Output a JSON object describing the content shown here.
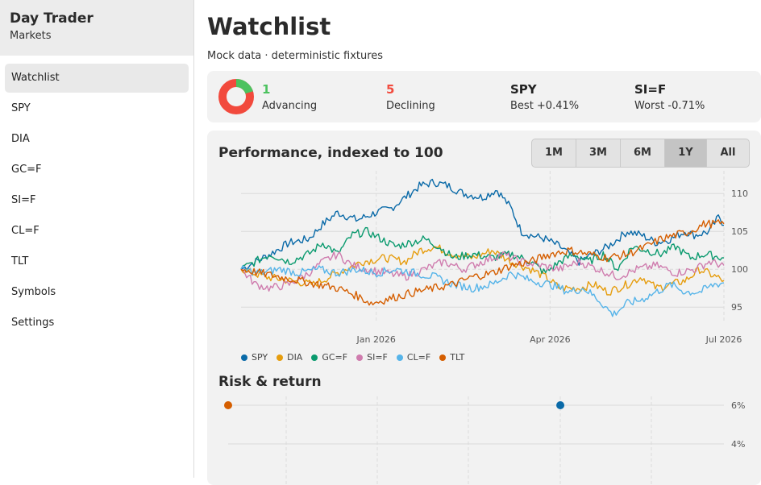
{
  "app": {
    "title": "Day Trader",
    "subtitle": "Markets"
  },
  "sidebar": {
    "items": [
      {
        "label": "Watchlist",
        "active": true
      },
      {
        "label": "SPY"
      },
      {
        "label": "DIA"
      },
      {
        "label": "GC=F"
      },
      {
        "label": "SI=F"
      },
      {
        "label": "CL=F"
      },
      {
        "label": "TLT"
      },
      {
        "label": "Symbols"
      },
      {
        "label": "Settings"
      }
    ]
  },
  "page": {
    "title": "Watchlist",
    "subtitle": "Mock data · deterministic fixtures"
  },
  "summary": {
    "advancing": {
      "count": "1",
      "label": "Advancing",
      "color": "#4cc25f"
    },
    "declining": {
      "count": "5",
      "label": "Declining",
      "color": "#f24a3d"
    },
    "best": {
      "symbol": "SPY",
      "label": "Best +0.41%"
    },
    "worst": {
      "symbol": "SI=F",
      "label": "Worst -0.71%"
    }
  },
  "performance": {
    "title": "Performance, indexed to 100",
    "ranges": [
      "1M",
      "3M",
      "6M",
      "1Y",
      "All"
    ],
    "active_range": "1Y"
  },
  "risk": {
    "title": "Risk & return"
  },
  "chart_data": [
    {
      "type": "line",
      "title": "Performance, indexed to 100",
      "ylim": [
        93,
        113
      ],
      "y_ticks": [
        "110",
        "105",
        "100",
        "95"
      ],
      "x_tick_labels": [
        "Jan 2026",
        "Apr 2026",
        "Jul 2026"
      ],
      "x_tick_pos": [
        0.28,
        0.64,
        1.0
      ],
      "legend": "bottom-left",
      "series": [
        {
          "name": "SPY",
          "color": "#0a6aa8",
          "anchors": [
            [
              0,
              100
            ],
            [
              0.03,
              101
            ],
            [
              0.06,
              102
            ],
            [
              0.1,
              103.5
            ],
            [
              0.14,
              104
            ],
            [
              0.17,
              106
            ],
            [
              0.2,
              107.5
            ],
            [
              0.24,
              106.5
            ],
            [
              0.28,
              107.5
            ],
            [
              0.31,
              108
            ],
            [
              0.34,
              109.5
            ],
            [
              0.37,
              111
            ],
            [
              0.4,
              111.5
            ],
            [
              0.43,
              111
            ],
            [
              0.46,
              110
            ],
            [
              0.5,
              109.5
            ],
            [
              0.53,
              110.5
            ],
            [
              0.56,
              108
            ],
            [
              0.58,
              105
            ],
            [
              0.6,
              104.5
            ],
            [
              0.63,
              104
            ],
            [
              0.66,
              103
            ],
            [
              0.7,
              101
            ],
            [
              0.73,
              102
            ],
            [
              0.76,
              103
            ],
            [
              0.8,
              105
            ],
            [
              0.83,
              104.5
            ],
            [
              0.86,
              103.5
            ],
            [
              0.89,
              104
            ],
            [
              0.92,
              105
            ],
            [
              0.94,
              104.5
            ],
            [
              0.97,
              105
            ],
            [
              0.99,
              107
            ],
            [
              1.0,
              105.8
            ]
          ]
        },
        {
          "name": "DIA",
          "color": "#e69d0e",
          "anchors": [
            [
              0,
              100
            ],
            [
              0.05,
              99
            ],
            [
              0.1,
              98.5
            ],
            [
              0.15,
              98
            ],
            [
              0.2,
              99.5
            ],
            [
              0.25,
              101
            ],
            [
              0.3,
              101.5
            ],
            [
              0.34,
              101
            ],
            [
              0.37,
              102.5
            ],
            [
              0.4,
              103
            ],
            [
              0.44,
              102
            ],
            [
              0.48,
              101.5
            ],
            [
              0.52,
              102.5
            ],
            [
              0.56,
              101
            ],
            [
              0.6,
              100
            ],
            [
              0.63,
              99
            ],
            [
              0.66,
              97.5
            ],
            [
              0.7,
              97.5
            ],
            [
              0.73,
              98
            ],
            [
              0.76,
              97
            ],
            [
              0.8,
              98
            ],
            [
              0.83,
              99
            ],
            [
              0.86,
              97.5
            ],
            [
              0.89,
              98
            ],
            [
              0.92,
              98.5
            ],
            [
              0.95,
              100
            ],
            [
              1.0,
              98.5
            ]
          ]
        },
        {
          "name": "GC=F",
          "color": "#0a9a6e",
          "anchors": [
            [
              0,
              100
            ],
            [
              0.03,
              101
            ],
            [
              0.06,
              102
            ],
            [
              0.1,
              101
            ],
            [
              0.14,
              102
            ],
            [
              0.17,
              103.5
            ],
            [
              0.2,
              102
            ],
            [
              0.23,
              104.5
            ],
            [
              0.26,
              105
            ],
            [
              0.29,
              104
            ],
            [
              0.32,
              103
            ],
            [
              0.35,
              103.5
            ],
            [
              0.38,
              104
            ],
            [
              0.41,
              103
            ],
            [
              0.44,
              101.5
            ],
            [
              0.48,
              102
            ],
            [
              0.52,
              101.5
            ],
            [
              0.56,
              102
            ],
            [
              0.6,
              101
            ],
            [
              0.63,
              99.5
            ],
            [
              0.66,
              101
            ],
            [
              0.69,
              102
            ],
            [
              0.72,
              101
            ],
            [
              0.75,
              102
            ],
            [
              0.78,
              100
            ],
            [
              0.81,
              103
            ],
            [
              0.84,
              102.5
            ],
            [
              0.87,
              102
            ],
            [
              0.9,
              103
            ],
            [
              0.93,
              101.5
            ],
            [
              0.96,
              102
            ],
            [
              1.0,
              101.5
            ]
          ]
        },
        {
          "name": "SI=F",
          "color": "#cf7cae",
          "anchors": [
            [
              0,
              100
            ],
            [
              0.03,
              98
            ],
            [
              0.06,
              97.5
            ],
            [
              0.1,
              98
            ],
            [
              0.14,
              99.5
            ],
            [
              0.17,
              101
            ],
            [
              0.2,
              102
            ],
            [
              0.23,
              100.5
            ],
            [
              0.26,
              100
            ],
            [
              0.3,
              99.5
            ],
            [
              0.34,
              99
            ],
            [
              0.38,
              100
            ],
            [
              0.42,
              101
            ],
            [
              0.46,
              100
            ],
            [
              0.5,
              101
            ],
            [
              0.54,
              102
            ],
            [
              0.58,
              101
            ],
            [
              0.62,
              100.5
            ],
            [
              0.66,
              100
            ],
            [
              0.7,
              101
            ],
            [
              0.74,
              100
            ],
            [
              0.78,
              99
            ],
            [
              0.82,
              100
            ],
            [
              0.86,
              100.5
            ],
            [
              0.9,
              99.5
            ],
            [
              0.94,
              100
            ],
            [
              0.97,
              101
            ],
            [
              1.0,
              100.5
            ]
          ]
        },
        {
          "name": "CL=F",
          "color": "#56b4e9",
          "anchors": [
            [
              0,
              100
            ],
            [
              0.04,
              99.5
            ],
            [
              0.08,
              100
            ],
            [
              0.12,
              99.5
            ],
            [
              0.16,
              100
            ],
            [
              0.2,
              99.5
            ],
            [
              0.24,
              100
            ],
            [
              0.28,
              99.5
            ],
            [
              0.32,
              100
            ],
            [
              0.36,
              99.5
            ],
            [
              0.4,
              99
            ],
            [
              0.44,
              98
            ],
            [
              0.48,
              97.5
            ],
            [
              0.52,
              98
            ],
            [
              0.56,
              99.5
            ],
            [
              0.6,
              98.5
            ],
            [
              0.64,
              98
            ],
            [
              0.68,
              97
            ],
            [
              0.71,
              97.5
            ],
            [
              0.74,
              96
            ],
            [
              0.77,
              94
            ],
            [
              0.8,
              95.5
            ],
            [
              0.83,
              96
            ],
            [
              0.86,
              97
            ],
            [
              0.89,
              98
            ],
            [
              0.92,
              97
            ],
            [
              0.95,
              97
            ],
            [
              0.98,
              98
            ],
            [
              1.0,
              98.2
            ]
          ]
        },
        {
          "name": "TLT",
          "color": "#d55e00",
          "anchors": [
            [
              0,
              100
            ],
            [
              0.04,
              99.5
            ],
            [
              0.08,
              99
            ],
            [
              0.12,
              98.5
            ],
            [
              0.16,
              98
            ],
            [
              0.2,
              97.5
            ],
            [
              0.24,
              96.5
            ],
            [
              0.27,
              95.5
            ],
            [
              0.3,
              96
            ],
            [
              0.33,
              96.5
            ],
            [
              0.36,
              97
            ],
            [
              0.4,
              97.5
            ],
            [
              0.44,
              98
            ],
            [
              0.48,
              99
            ],
            [
              0.52,
              99.5
            ],
            [
              0.56,
              100.5
            ],
            [
              0.6,
              101
            ],
            [
              0.64,
              102
            ],
            [
              0.68,
              102.5
            ],
            [
              0.72,
              102
            ],
            [
              0.76,
              101.5
            ],
            [
              0.8,
              102
            ],
            [
              0.84,
              103
            ],
            [
              0.87,
              104
            ],
            [
              0.9,
              104.5
            ],
            [
              0.93,
              105
            ],
            [
              0.96,
              106
            ],
            [
              1.0,
              106
            ]
          ]
        }
      ]
    },
    {
      "type": "scatter",
      "title": "Risk & return",
      "y_ticks": [
        "6%",
        "4%"
      ],
      "points": [
        {
          "name": "TLT",
          "color": "#d55e00",
          "x": 0.0,
          "y": 6.0
        },
        {
          "name": "SPY",
          "color": "#0a6aa8",
          "x": 0.67,
          "y": 6.0
        }
      ]
    }
  ]
}
